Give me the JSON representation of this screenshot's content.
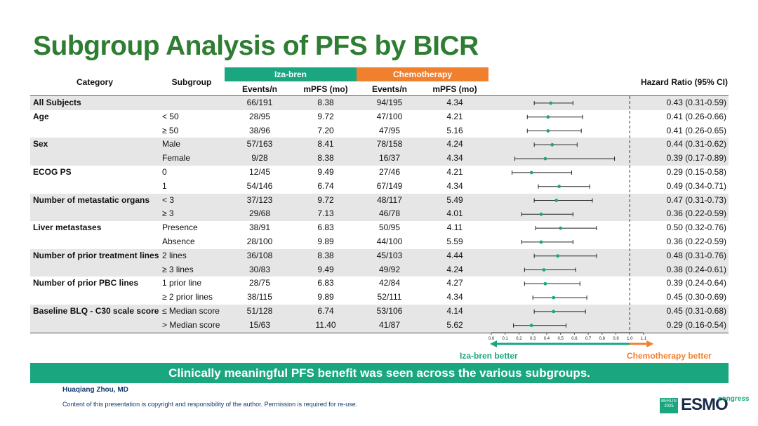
{
  "title": "Subgroup Analysis of PFS by BICR",
  "columns": {
    "category": "Category",
    "subgroup": "Subgroup",
    "arm1": "Iza-bren",
    "arm2": "Chemotherapy",
    "events": "Events/n",
    "mpfs": "mPFS (mo)",
    "hr": "Hazard Ratio (95% CI)"
  },
  "rows": [
    {
      "category": "All Subjects",
      "subgroup": "",
      "events1": "66/191",
      "mpfs1": "8.38",
      "events2": "94/195",
      "mpfs2": "4.34",
      "hr_text": "0.43 (0.31-0.59)",
      "shade": true
    },
    {
      "category": "Age",
      "subgroup": "< 50",
      "events1": "28/95",
      "mpfs1": "9.72",
      "events2": "47/100",
      "mpfs2": "4.21",
      "hr_text": "0.41 (0.26-0.66)",
      "shade": false
    },
    {
      "category": "",
      "subgroup": "≥ 50",
      "events1": "38/96",
      "mpfs1": "7.20",
      "events2": "47/95",
      "mpfs2": "5.16",
      "hr_text": "0.41 (0.26-0.65)",
      "shade": false
    },
    {
      "category": "Sex",
      "subgroup": "Male",
      "events1": "57/163",
      "mpfs1": "8.41",
      "events2": "78/158",
      "mpfs2": "4.24",
      "hr_text": "0.44 (0.31-0.62)",
      "shade": true
    },
    {
      "category": "",
      "subgroup": "Female",
      "events1": "9/28",
      "mpfs1": "8.38",
      "events2": "16/37",
      "mpfs2": "4.34",
      "hr_text": "0.39 (0.17-0.89)",
      "shade": true
    },
    {
      "category": "ECOG PS",
      "subgroup": "0",
      "events1": "12/45",
      "mpfs1": "9.49",
      "events2": "27/46",
      "mpfs2": "4.21",
      "hr_text": "0.29 (0.15-0.58)",
      "shade": false
    },
    {
      "category": "",
      "subgroup": "1",
      "events1": "54/146",
      "mpfs1": "6.74",
      "events2": "67/149",
      "mpfs2": "4.34",
      "hr_text": "0.49 (0.34-0.71)",
      "shade": false
    },
    {
      "category": "Number of metastatic organs",
      "subgroup": "< 3",
      "events1": "37/123",
      "mpfs1": "9.72",
      "events2": "48/117",
      "mpfs2": "5.49",
      "hr_text": "0.47 (0.31-0.73)",
      "shade": true
    },
    {
      "category": "",
      "subgroup": "≥ 3",
      "events1": "29/68",
      "mpfs1": "7.13",
      "events2": "46/78",
      "mpfs2": "4.01",
      "hr_text": "0.36 (0.22-0.59)",
      "shade": true
    },
    {
      "category": "Liver metastases",
      "subgroup": "Presence",
      "events1": "38/91",
      "mpfs1": "6.83",
      "events2": "50/95",
      "mpfs2": "4.11",
      "hr_text": "0.50 (0.32-0.76)",
      "shade": false
    },
    {
      "category": "",
      "subgroup": "Absence",
      "events1": "28/100",
      "mpfs1": "9.89",
      "events2": "44/100",
      "mpfs2": "5.59",
      "hr_text": "0.36 (0.22-0.59)",
      "shade": false
    },
    {
      "category": "Number of prior treatment lines",
      "subgroup": "2 lines",
      "events1": "36/108",
      "mpfs1": "8.38",
      "events2": "45/103",
      "mpfs2": "4.44",
      "hr_text": "0.48 (0.31-0.76)",
      "shade": true
    },
    {
      "category": "",
      "subgroup": "≥ 3 lines",
      "events1": "30/83",
      "mpfs1": "9.49",
      "events2": "49/92",
      "mpfs2": "4.24",
      "hr_text": "0.38 (0.24-0.61)",
      "shade": true
    },
    {
      "category": "Number of prior PBC lines",
      "subgroup": "1 prior line",
      "events1": "28/75",
      "mpfs1": "6.83",
      "events2": "42/84",
      "mpfs2": "4.27",
      "hr_text": "0.39 (0.24-0.64)",
      "shade": false
    },
    {
      "category": "",
      "subgroup": "≥ 2 prior lines",
      "events1": "38/115",
      "mpfs1": "9.89",
      "events2": "52/111",
      "mpfs2": "4.34",
      "hr_text": "0.45 (0.30-0.69)",
      "shade": false
    },
    {
      "category": "Baseline BLQ - C30 scale score",
      "subgroup": "≤ Median score",
      "events1": "51/128",
      "mpfs1": "6.74",
      "events2": "53/106",
      "mpfs2": "4.14",
      "hr_text": "0.45 (0.31-0.68)",
      "shade": true
    },
    {
      "category": "",
      "subgroup": "> Median score",
      "events1": "15/63",
      "mpfs1": "11.40",
      "events2": "41/87",
      "mpfs2": "5.62",
      "hr_text": "0.29 (0.16-0.54)",
      "shade": true
    }
  ],
  "chart_data": {
    "type": "scatter",
    "title": "",
    "xlabel": "",
    "ylabel": "",
    "xlim": [
      0.0,
      1.1
    ],
    "xticks": [
      "0.0",
      "0.1",
      "0.2",
      "0.3",
      "0.4",
      "0.5",
      "0.6",
      "0.7",
      "0.8",
      "0.9",
      "1.0",
      "1.1"
    ],
    "reference_line": 1.0,
    "point_color": "#1aa780",
    "categories": [
      "All Subjects",
      "< 50",
      "≥ 50",
      "Male",
      "Female",
      "0",
      "1",
      "< 3",
      "≥ 3",
      "Presence",
      "Absence",
      "2 lines",
      "≥ 3 lines",
      "1 prior line",
      "≥ 2 prior lines",
      "≤ Median score",
      "> Median score"
    ],
    "hr": [
      0.43,
      0.41,
      0.41,
      0.44,
      0.39,
      0.29,
      0.49,
      0.47,
      0.36,
      0.5,
      0.36,
      0.48,
      0.38,
      0.39,
      0.45,
      0.45,
      0.29
    ],
    "lower": [
      0.31,
      0.26,
      0.26,
      0.31,
      0.17,
      0.15,
      0.34,
      0.31,
      0.22,
      0.32,
      0.22,
      0.31,
      0.24,
      0.24,
      0.3,
      0.31,
      0.16
    ],
    "upper": [
      0.59,
      0.66,
      0.65,
      0.62,
      0.89,
      0.58,
      0.71,
      0.73,
      0.59,
      0.76,
      0.59,
      0.76,
      0.61,
      0.64,
      0.69,
      0.68,
      0.54
    ],
    "left_label": "Iza-bren better",
    "right_label": "Chemotherapy better",
    "left_color": "#1aa780",
    "right_color": "#f07f2e"
  },
  "conclusion": "Clinically meaningful PFS benefit was seen across the various subgroups.",
  "author": "Huaqiang Zhou, MD",
  "copyright": "Content of this presentation is copyright and responsibility of the author. Permission is required for re-use.",
  "logo": {
    "box_line1": "BERLIN",
    "box_line2": "2025",
    "word": "ESMO",
    "sub": "congress"
  }
}
